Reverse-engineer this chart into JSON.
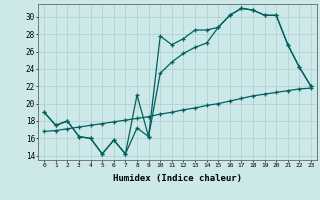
{
  "xlabel": "Humidex (Indice chaleur)",
  "background_color": "#cce8e8",
  "grid_color": "#aacfcf",
  "line_color": "#006060",
  "xlim": [
    -0.5,
    23.5
  ],
  "ylim": [
    13.5,
    31.5
  ],
  "yticks": [
    14,
    16,
    18,
    20,
    22,
    24,
    26,
    28,
    30
  ],
  "xticks": [
    0,
    1,
    2,
    3,
    4,
    5,
    6,
    7,
    8,
    9,
    10,
    11,
    12,
    13,
    14,
    15,
    16,
    17,
    18,
    19,
    20,
    21,
    22,
    23
  ],
  "line1_x": [
    0,
    1,
    2,
    3,
    4,
    5,
    6,
    7,
    8,
    9,
    10,
    11,
    12,
    13,
    14,
    15,
    16,
    17,
    18,
    19,
    20,
    21,
    22,
    23
  ],
  "line1_y": [
    19.0,
    17.5,
    18.0,
    16.2,
    16.0,
    14.2,
    15.8,
    14.2,
    21.0,
    16.2,
    27.8,
    26.8,
    27.5,
    28.5,
    28.5,
    28.8,
    30.2,
    31.0,
    30.8,
    30.2,
    30.2,
    26.8,
    24.2,
    22.0
  ],
  "line2_x": [
    0,
    1,
    2,
    3,
    4,
    5,
    6,
    7,
    8,
    9,
    10,
    11,
    12,
    13,
    14,
    15,
    16,
    17,
    18,
    19,
    20,
    21,
    22,
    23
  ],
  "line2_y": [
    19.0,
    17.5,
    18.0,
    16.2,
    16.0,
    14.2,
    15.8,
    14.2,
    17.2,
    16.2,
    23.5,
    24.8,
    25.8,
    26.5,
    27.0,
    28.8,
    30.2,
    31.0,
    30.8,
    30.2,
    30.2,
    26.8,
    24.2,
    22.0
  ],
  "line3_x": [
    0,
    1,
    2,
    3,
    4,
    5,
    6,
    7,
    8,
    9,
    10,
    11,
    12,
    13,
    14,
    15,
    16,
    17,
    18,
    19,
    20,
    21,
    22,
    23
  ],
  "line3_y": [
    16.8,
    16.9,
    17.1,
    17.3,
    17.5,
    17.7,
    17.9,
    18.1,
    18.3,
    18.5,
    18.8,
    19.0,
    19.3,
    19.5,
    19.8,
    20.0,
    20.3,
    20.6,
    20.9,
    21.1,
    21.3,
    21.5,
    21.7,
    21.8
  ]
}
